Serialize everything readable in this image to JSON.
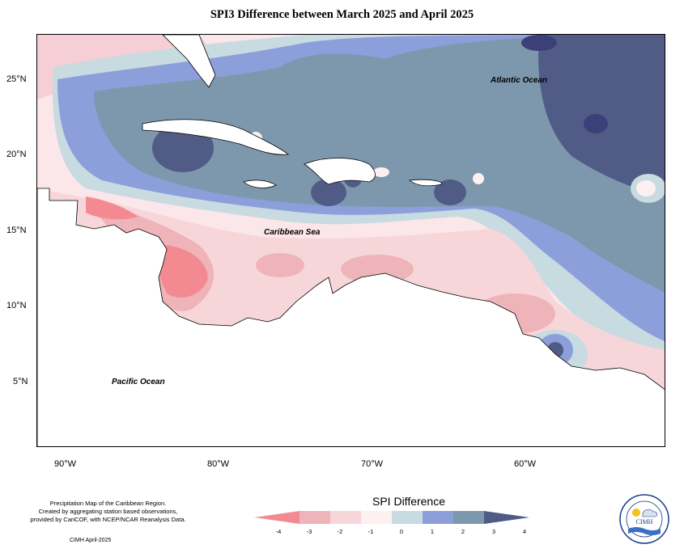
{
  "title": "SPI3 Difference between March 2025 and April 2025",
  "map": {
    "x_axis_ticks": [
      "90°W",
      "80°W",
      "70°W",
      "60°W"
    ],
    "y_axis_ticks": [
      "25°N",
      "20°N",
      "15°N",
      "10°N",
      "5°N"
    ],
    "labels": {
      "atlantic": "Atlantic Ocean",
      "caribbean": "Caribbean Sea",
      "pacific": "Pacific Ocean"
    }
  },
  "legend": {
    "title": "SPI Difference",
    "tick_labels": [
      "-4",
      "-3",
      "-2",
      "-1",
      "0",
      "1",
      "2",
      "3",
      "4"
    ],
    "colors": [
      "#f38a91",
      "#efb4b9",
      "#f7d6da",
      "#fdf0f1",
      "#c7dbe1",
      "#8c9fdb",
      "#7d97ad",
      "#515c86"
    ]
  },
  "credits": {
    "line1": "Precipitation Map of the Caribbean Region.",
    "line2": "Created by aggregating station based observations,",
    "line3": "provided by CariCOF, with NCEP/NCAR Reanalysis Data.",
    "date": "CIMH April-2025"
  },
  "logo": {
    "text": "CIMH",
    "ring_text": "Caribbean Institute for Meteorology and Hydrology"
  }
}
